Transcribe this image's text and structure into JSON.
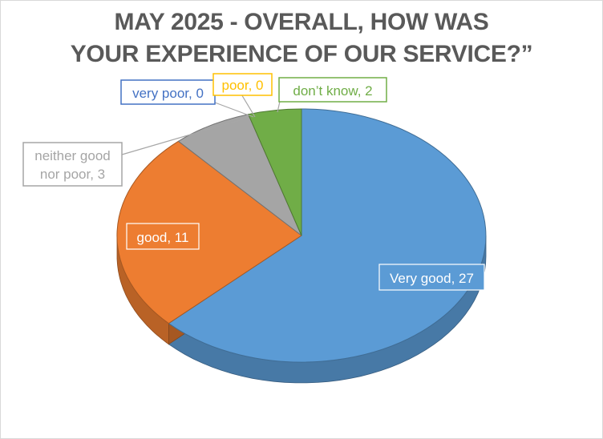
{
  "chart_data": {
    "type": "pie",
    "title_line1": "MAY 2025 - OVERALL, HOW WAS",
    "title_line2": "YOUR EXPERIENCE OF OUR SERVICE?”",
    "slices": [
      {
        "label": "Very good",
        "value": 27,
        "label_text": "Very good, 27",
        "color": "#5b9bd5"
      },
      {
        "label": "good",
        "value": 11,
        "label_text": "good, 11",
        "color": "#ed7d31"
      },
      {
        "label": "neither good nor poor",
        "value": 3,
        "label_line1": "neither good",
        "label_line2": "nor poor, 3",
        "color": "#a5a5a5"
      },
      {
        "label": "very poor",
        "value": 0,
        "label_text": "very poor, 0",
        "color": "#4472c4"
      },
      {
        "label": "poor",
        "value": 0,
        "label_text": "poor, 0",
        "color": "#ffc000"
      },
      {
        "label": "don’t know",
        "value": 2,
        "label_text": "don’t know, 2",
        "color": "#70ad47"
      }
    ]
  }
}
